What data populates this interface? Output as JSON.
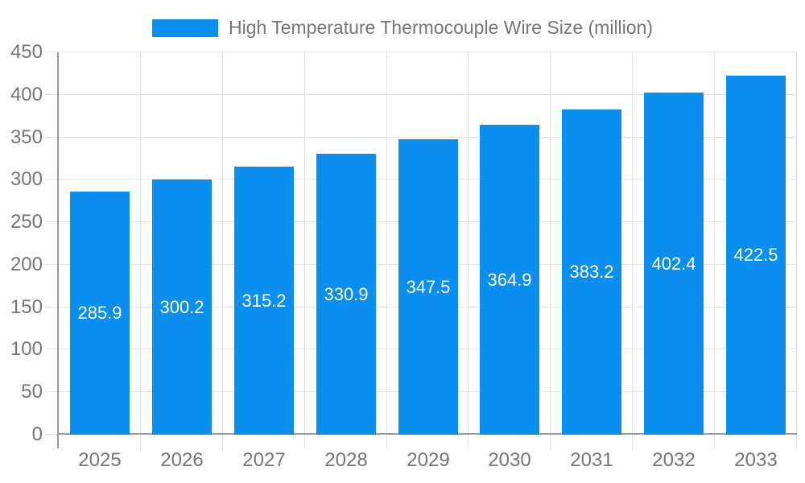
{
  "legend": {
    "label": "High Temperature Thermocouple Wire Size (million)"
  },
  "chart_data": {
    "type": "bar",
    "title": "High Temperature Thermocouple Wire Size (million)",
    "categories": [
      "2025",
      "2026",
      "2027",
      "2028",
      "2029",
      "2030",
      "2031",
      "2032",
      "2033"
    ],
    "values": [
      285.9,
      300.2,
      315.2,
      330.9,
      347.5,
      364.9,
      383.2,
      402.4,
      422.5
    ],
    "xlabel": "",
    "ylabel": "",
    "ylim": [
      0,
      450
    ],
    "ytick_step": 50,
    "yticks": [
      0,
      50,
      100,
      150,
      200,
      250,
      300,
      350,
      400,
      450
    ],
    "grid": true,
    "legend_position": "top-center",
    "value_label_position": "inside-center",
    "colors": {
      "bar": "#0a8ff0",
      "value_label": "#ffffff",
      "axis_line": "#9c9c9c",
      "gridline": "#e4e4e4",
      "text": "#757575",
      "background": "#ffffff"
    }
  }
}
